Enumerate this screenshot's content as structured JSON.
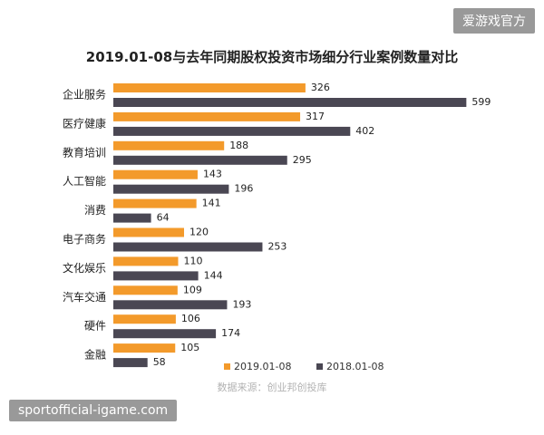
{
  "watermark_top": "爱游戏官方",
  "watermark_bottom": "sportofficial-igame.com",
  "source_note": "数据来源：创业邦创投库",
  "colors": {
    "series_2019": "#F39A2B",
    "series_2018": "#4A4753"
  },
  "chart_data": {
    "type": "bar",
    "orientation": "horizontal",
    "title": "2019.01-08与去年同期股权投资市场细分行业案例数量对比",
    "xlabel": "",
    "ylabel": "",
    "xlim": [
      0,
      620
    ],
    "grid": false,
    "legend_position": "bottom-right",
    "categories": [
      "企业服务",
      "医疗健康",
      "教育培训",
      "人工智能",
      "消费",
      "电子商务",
      "文化娱乐",
      "汽车交通",
      "硬件",
      "金融"
    ],
    "series": [
      {
        "name": "2019.01-08",
        "values": [
          326,
          317,
          188,
          143,
          141,
          120,
          110,
          109,
          106,
          105
        ]
      },
      {
        "name": "2018.01-08",
        "values": [
          599,
          402,
          295,
          196,
          64,
          253,
          144,
          193,
          174,
          58
        ]
      }
    ]
  }
}
